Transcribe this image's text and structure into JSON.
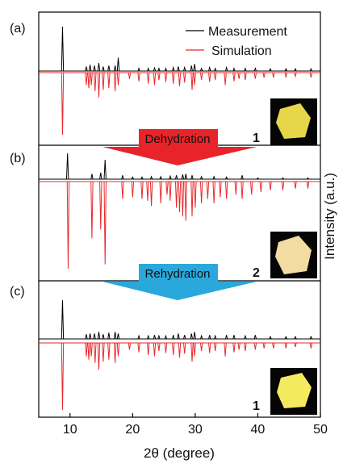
{
  "chart_data": {
    "type": "stem",
    "xlabel": "2θ (degree)",
    "ylabel": "Intensity (a.u.)",
    "xlim": [
      5,
      50
    ],
    "xticks": [
      10,
      20,
      30,
      40,
      50
    ],
    "transitions": [
      "Dehydration",
      "Rehydration"
    ],
    "panels": [
      {
        "label": "(a)",
        "sample": "1",
        "series": [
          {
            "name": "Measurement",
            "color": "#000000",
            "x": [
              8.8,
              12.6,
              13.2,
              13.9,
              14.6,
              15.3,
              16.2,
              17.2,
              17.7,
              21,
              22.5,
              23.5,
              24.2,
              25.3,
              26.5,
              27.3,
              28.3,
              29.4,
              29.9,
              31,
              32.3,
              33.2,
              35,
              36.2,
              38,
              39.6,
              42,
              44.5,
              46,
              48.5
            ],
            "values": [
              100,
              10,
              14,
              12,
              18,
              10,
              12,
              12,
              30,
              6,
              6,
              7,
              6,
              6,
              8,
              10,
              8,
              12,
              16,
              6,
              8,
              6,
              8,
              6,
              6,
              6,
              5,
              5,
              5,
              5
            ]
          },
          {
            "name": "Simulation",
            "color": "#e8292b",
            "x": [
              8.8,
              12.6,
              13.0,
              13.4,
              14.0,
              14.6,
              15.3,
              16.2,
              17.2,
              17.7,
              19.5,
              21,
              22.5,
              23.5,
              24.2,
              25.3,
              26.5,
              27.5,
              28.3,
              29.5,
              29.9,
              31,
              32.3,
              33.2,
              34.8,
              36.2,
              37,
              38,
              39.6,
              41,
              42.5,
              44.5,
              46,
              48.5
            ],
            "values": [
              100,
              20,
              25,
              20,
              30,
              40,
              28,
              25,
              30,
              20,
              10,
              14,
              18,
              20,
              12,
              15,
              18,
              22,
              16,
              28,
              20,
              12,
              15,
              12,
              20,
              14,
              10,
              12,
              10,
              8,
              8,
              8,
              6,
              8
            ]
          }
        ]
      },
      {
        "label": "(b)",
        "sample": "2",
        "series": [
          {
            "name": "Measurement",
            "color": "#000000",
            "x": [
              9.6,
              13.5,
              14.9,
              15.6,
              18.4,
              20,
              21.5,
              23,
              24.5,
              26,
              27,
              28,
              28.5,
              29.5,
              31,
              33,
              35,
              37.5,
              40,
              44,
              48
            ],
            "values": [
              100,
              20,
              25,
              75,
              15,
              8,
              8,
              10,
              10,
              12,
              15,
              18,
              20,
              15,
              10,
              10,
              8,
              15,
              5,
              5,
              5
            ]
          },
          {
            "name": "Simulation",
            "color": "#e8292b",
            "x": [
              9.7,
              13.5,
              14.9,
              15.6,
              18.4,
              20,
              21.5,
              22.4,
              23,
              24.5,
              25.5,
              26,
              27,
              27.5,
              28,
              28.5,
              29.5,
              30,
              31,
              32,
              33,
              34,
              35,
              36.5,
              37.5,
              39,
              40.5,
              42,
              44,
              46,
              48
            ],
            "values": [
              100,
              65,
              55,
              95,
              20,
              18,
              20,
              22,
              28,
              25,
              15,
              22,
              30,
              35,
              40,
              45,
              40,
              30,
              25,
              20,
              25,
              18,
              20,
              15,
              20,
              15,
              12,
              10,
              10,
              8,
              8
            ]
          }
        ]
      },
      {
        "label": "(c)",
        "sample": "1",
        "series": [
          {
            "name": "Measurement",
            "color": "#000000",
            "x": [
              8.8,
              12.6,
              13.2,
              13.9,
              14.6,
              15.3,
              16.2,
              17.2,
              17.7,
              21,
              22.5,
              23.5,
              24.2,
              25.3,
              26.5,
              27.3,
              28.3,
              29.4,
              29.9,
              31,
              32.3,
              33.2,
              35,
              36.2,
              38,
              39.6,
              42,
              44.5,
              46,
              48.5
            ],
            "values": [
              100,
              12,
              14,
              14,
              18,
              12,
              16,
              18,
              14,
              8,
              8,
              10,
              8,
              8,
              10,
              14,
              10,
              14,
              18,
              8,
              10,
              8,
              10,
              10,
              8,
              10,
              6,
              6,
              6,
              6
            ]
          },
          {
            "name": "Simulation",
            "color": "#e8292b",
            "x": [
              8.8,
              12.6,
              13.0,
              13.4,
              14.0,
              14.6,
              15.3,
              16.2,
              17.2,
              17.7,
              19.5,
              21,
              22.5,
              23.5,
              24.2,
              25.3,
              26.5,
              27.5,
              28.3,
              29.5,
              29.9,
              31,
              32.3,
              33.2,
              34.8,
              36.2,
              37,
              38,
              39.6,
              41,
              42.5,
              44.5,
              46,
              48.5
            ],
            "values": [
              100,
              20,
              25,
              20,
              30,
              40,
              28,
              25,
              30,
              20,
              10,
              14,
              18,
              20,
              12,
              15,
              18,
              22,
              16,
              28,
              20,
              12,
              15,
              12,
              20,
              14,
              10,
              12,
              10,
              8,
              8,
              8,
              6,
              8
            ]
          }
        ]
      }
    ]
  }
}
